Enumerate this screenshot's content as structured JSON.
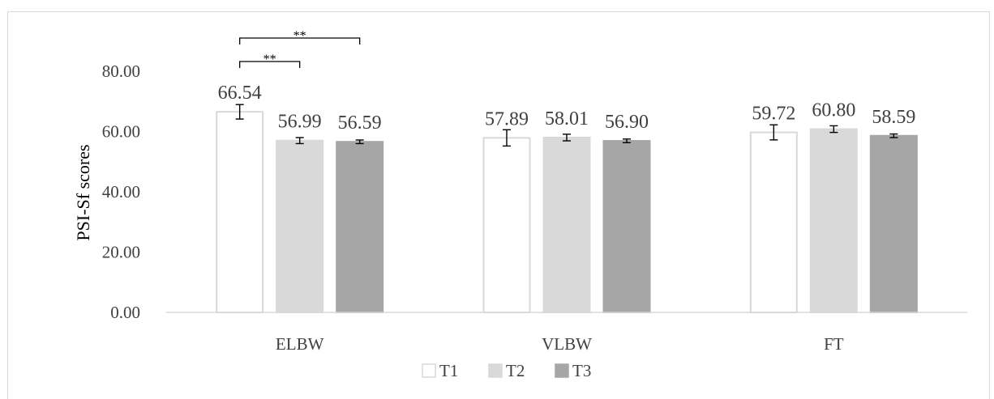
{
  "chart_data": {
    "type": "bar",
    "title": "",
    "xlabel": "",
    "ylabel": "PSI-Sf scores",
    "ylim": [
      0,
      80
    ],
    "yticks": [
      "0.00",
      "20.00",
      "40.00",
      "60.00",
      "80.00"
    ],
    "ytick_values": [
      0,
      20,
      40,
      60,
      80
    ],
    "categories": [
      "ELBW",
      "VLBW",
      "FT"
    ],
    "series": [
      {
        "name": "T1",
        "values": [
          66.54,
          57.89,
          59.72
        ],
        "labels": [
          "66.54",
          "57.89",
          "59.72"
        ],
        "errors": [
          2.4,
          2.7,
          2.5
        ],
        "color": "#ffffff",
        "stroke": "#d9d9d9"
      },
      {
        "name": "T2",
        "values": [
          56.99,
          58.01,
          60.8
        ],
        "labels": [
          "56.99",
          "58.01",
          "60.80"
        ],
        "errors": [
          1.0,
          1.1,
          1.1
        ],
        "color": "#d9d9d9",
        "stroke": "#d9d9d9"
      },
      {
        "name": "T3",
        "values": [
          56.59,
          56.9,
          58.59
        ],
        "labels": [
          "56.59",
          "56.90",
          "58.59"
        ],
        "errors": [
          0.6,
          0.6,
          0.6
        ],
        "color": "#a6a6a6",
        "stroke": "#a6a6a6"
      }
    ],
    "significance": [
      {
        "category": 0,
        "from_series": 0,
        "to_series": 1,
        "label": "**"
      },
      {
        "category": 0,
        "from_series": 0,
        "to_series": 2,
        "label": "**"
      }
    ],
    "grid": false,
    "legend_position": "bottom"
  }
}
